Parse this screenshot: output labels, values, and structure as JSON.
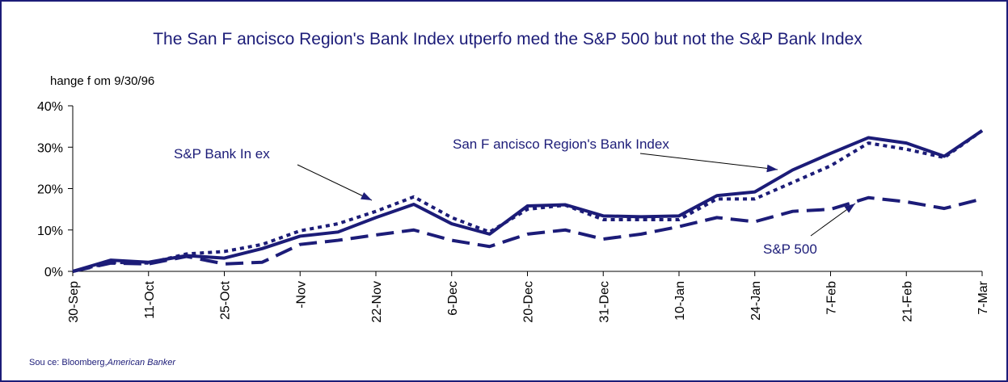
{
  "chart_data": {
    "type": "line",
    "title": "The San F ancisco Region's Bank Index    utperfo med the S&P 500 but not the S&P Bank Index",
    "subtitle": "hange f om 9/30/96",
    "source": "Sou ce:  Bloomberg,",
    "source_italic": "American Banker",
    "categories": [
      "30-Sep",
      null,
      "11-Oct",
      null,
      "25-Oct",
      null,
      "-Nov",
      null,
      "22-Nov",
      null,
      "6-Dec",
      null,
      "20-Dec",
      null,
      "31-Dec",
      null,
      "10-Jan",
      null,
      "24-Jan",
      null,
      "7-Feb",
      null,
      "21-Feb",
      null,
      "7-Mar"
    ],
    "series": [
      {
        "name": "San F ancisco Region's Bank Index",
        "color": "#1c1c78",
        "dash": "solid",
        "values": [
          0,
          2.7,
          2.2,
          3.8,
          3.2,
          5.5,
          8.5,
          9.5,
          13,
          16.2,
          11.5,
          9,
          15.8,
          16.1,
          13.4,
          13.2,
          13.4,
          18.3,
          19.2,
          24.5,
          28.5,
          32.3,
          31,
          27.8,
          34
        ]
      },
      {
        "name": "S&P Bank In  ex",
        "color": "#1c1c78",
        "dash": "dotted",
        "values": [
          0,
          2.2,
          2,
          4.2,
          4.8,
          6.5,
          9.8,
          11.5,
          14.5,
          18,
          13,
          9.5,
          15,
          16,
          12.5,
          12.5,
          12.5,
          17.5,
          17.5,
          21.5,
          25.5,
          31,
          29.5,
          27.5,
          34
        ]
      },
      {
        "name": "S&P 500",
        "color": "#1c1c78",
        "dash": "dashed",
        "values": [
          0,
          2,
          1.8,
          3.6,
          1.8,
          2.2,
          6.5,
          7.5,
          8.8,
          10,
          7.5,
          6,
          9,
          10,
          7.8,
          9,
          10.8,
          13,
          12,
          14.5,
          15,
          17.8,
          16.8,
          15.2,
          17.5
        ]
      }
    ],
    "ylim": [
      0,
      40
    ],
    "yticks": [
      {
        "value": 0,
        "label": "0%"
      },
      {
        "value": 10,
        "label": "10%"
      },
      {
        "value": 20,
        "label": "20%"
      },
      {
        "value": 30,
        "label": "30%"
      },
      {
        "value": 40,
        "label": "40%"
      }
    ],
    "grid": false
  }
}
